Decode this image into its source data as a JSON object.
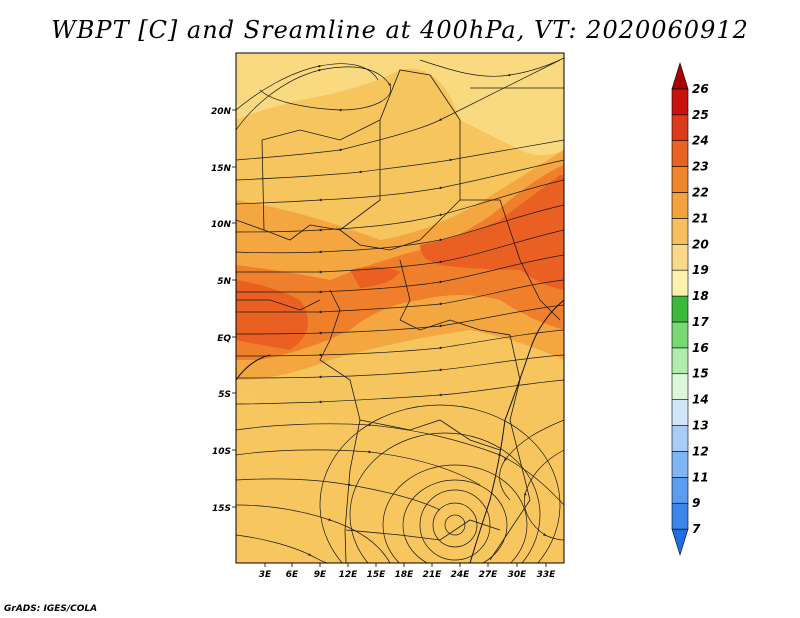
{
  "title": "WBPT [C] and Sreamline at 400hPa, VT: 2020060912",
  "credit": "GrADS: IGES/COLA",
  "map": {
    "lon_labels": [
      "3E",
      "6E",
      "9E",
      "12E",
      "15E",
      "18E",
      "21E",
      "24E",
      "27E",
      "30E",
      "33E"
    ],
    "lat_labels": [
      "20N",
      "15N",
      "10N",
      "5N",
      "EQ",
      "5S",
      "10S",
      "15S"
    ],
    "field_colors": {
      "c19": "#fbe08d",
      "c20": "#f7c55e",
      "c21": "#f4a640",
      "c22": "#f07f2c",
      "c23": "#ea6022"
    }
  },
  "colorbar": {
    "labels": [
      "7",
      "9",
      "11",
      "12",
      "13",
      "14",
      "15",
      "16",
      "17",
      "18",
      "19",
      "20",
      "21",
      "22",
      "23",
      "24",
      "25",
      "26"
    ],
    "colors": [
      "#1f6fe0",
      "#3a86ea",
      "#5a9cf0",
      "#80b4f3",
      "#a8ccf6",
      "#d2e6fa",
      "#def6dc",
      "#b0ecac",
      "#78da74",
      "#3cb83a",
      "#fdf1b0",
      "#fad98a",
      "#f6c05e",
      "#f3a23e",
      "#ef862c",
      "#e86324",
      "#dc3b1a",
      "#c81410",
      "#a80000"
    ]
  }
}
